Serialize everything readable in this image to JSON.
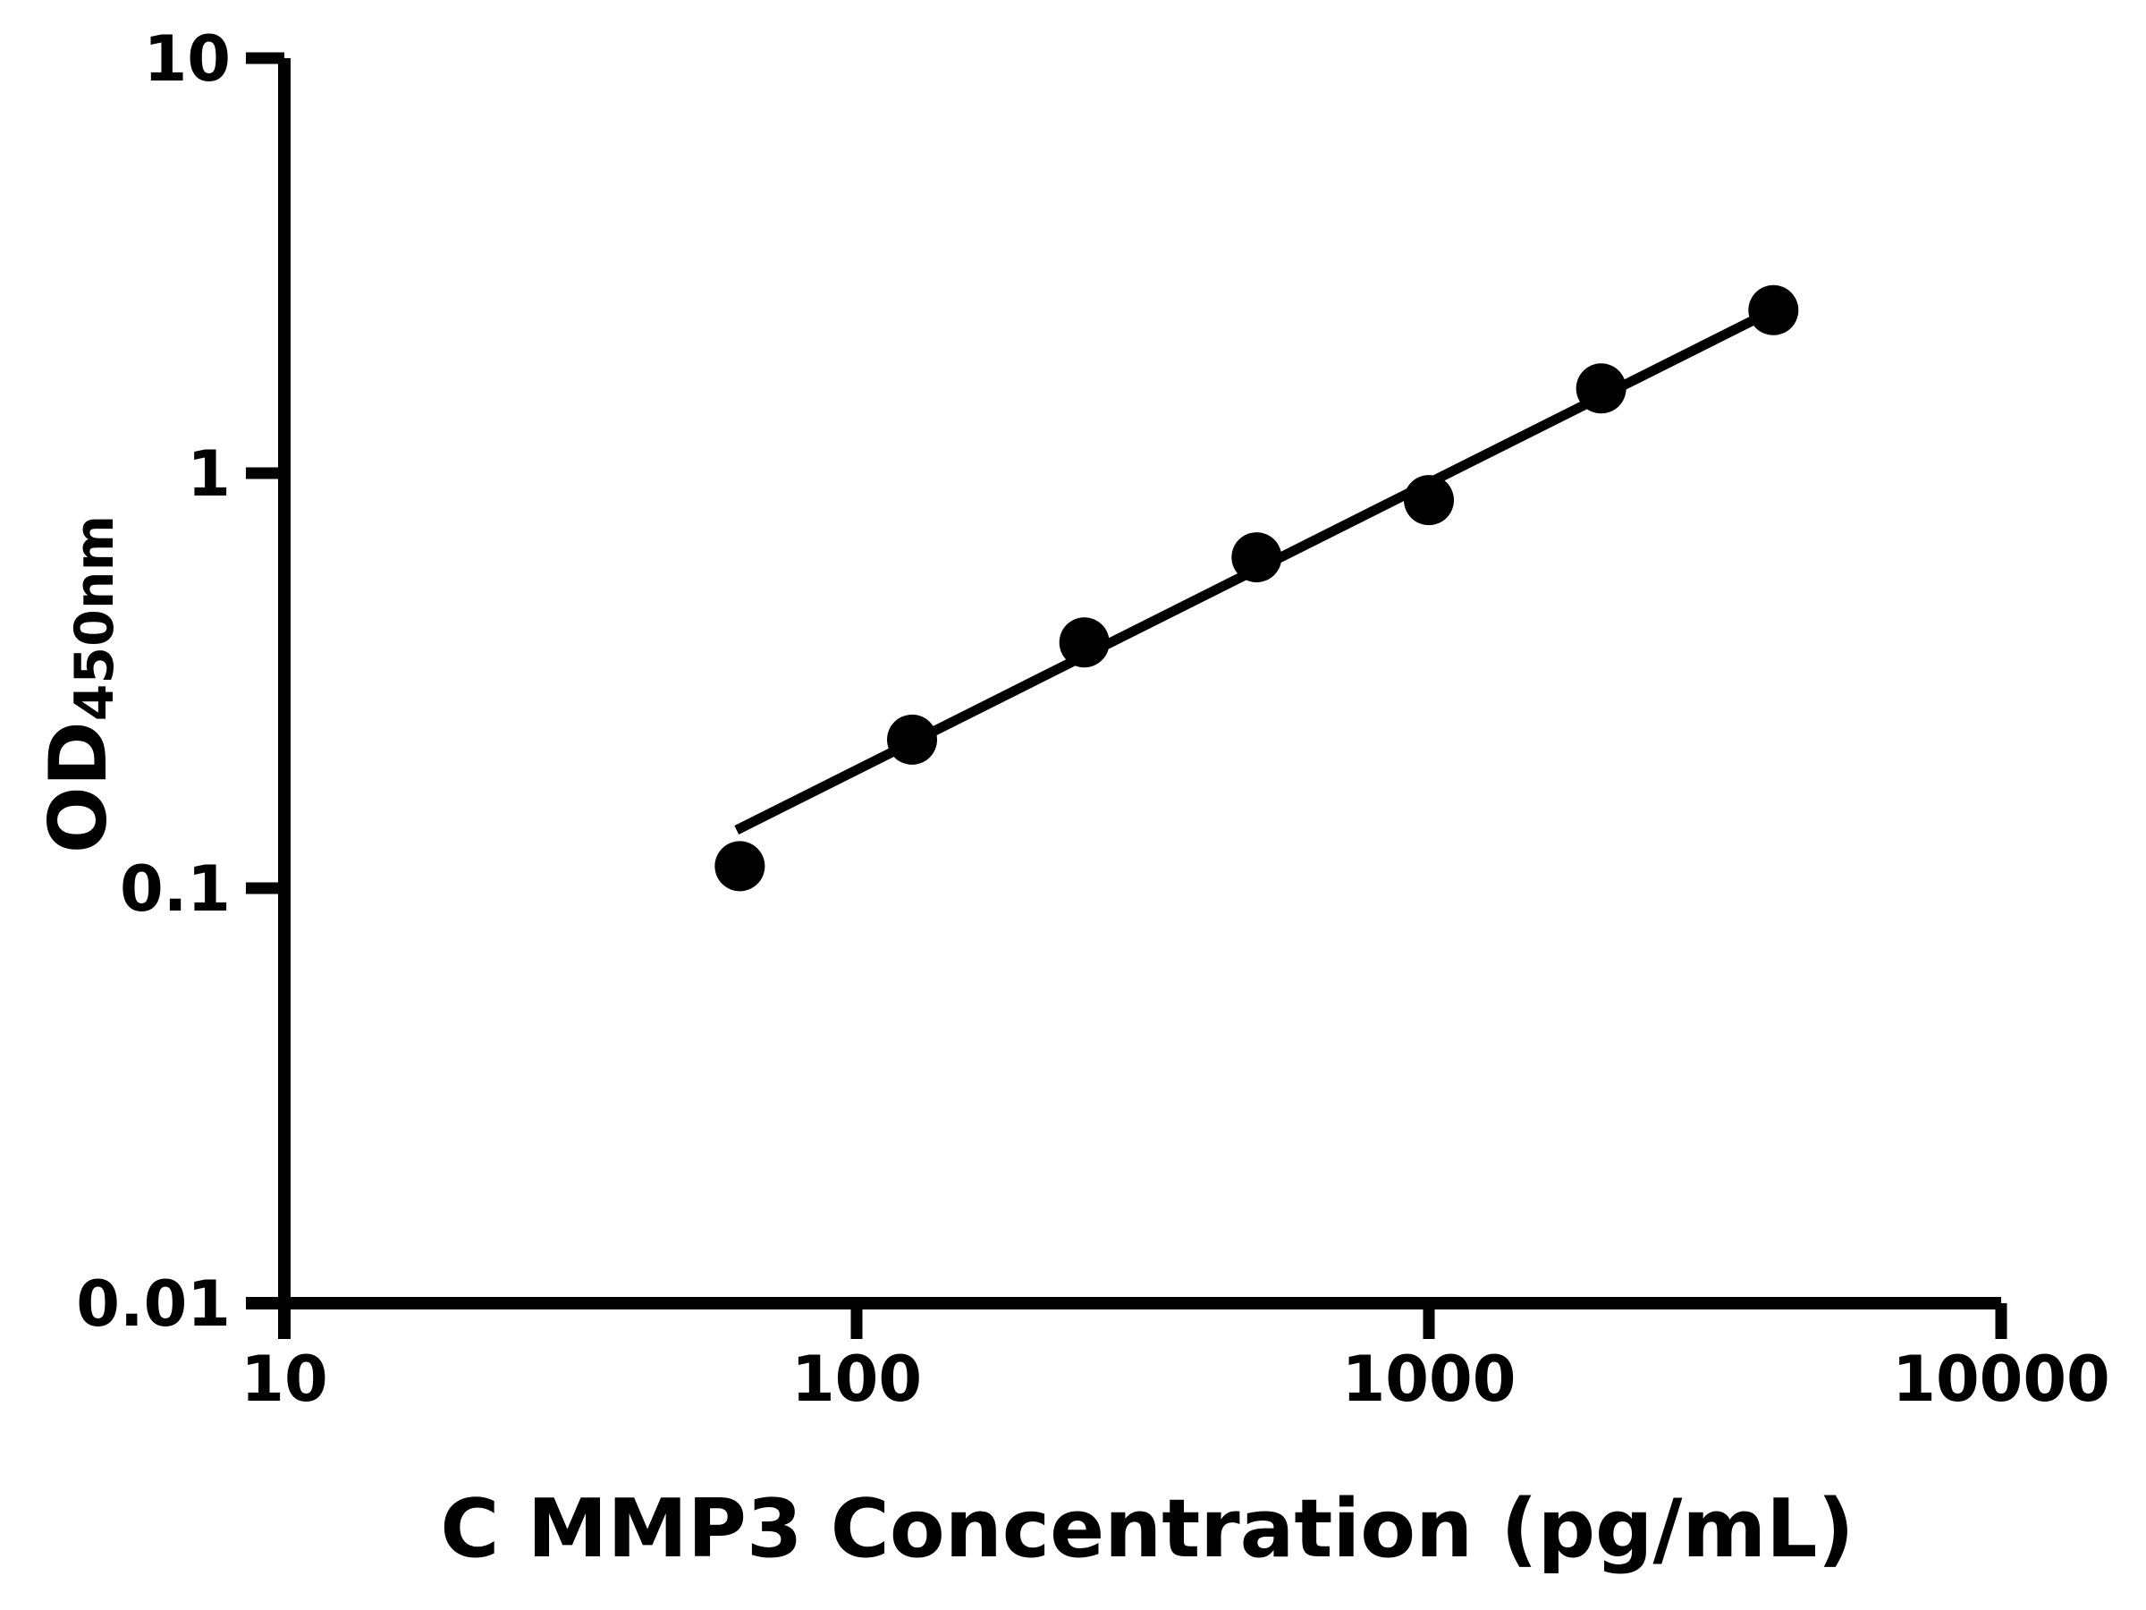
{
  "chart_data": {
    "type": "scatter",
    "title": "",
    "xlabel": "C MMP3 Concentration (pg/mL)",
    "ylabel_main": "OD",
    "ylabel_sub": "450nm",
    "x_scale": "log",
    "y_scale": "log",
    "xlim": [
      10,
      10000
    ],
    "ylim": [
      0.01,
      10
    ],
    "x_ticks": [
      {
        "value": 10,
        "label": "10"
      },
      {
        "value": 100,
        "label": "100"
      },
      {
        "value": 1000,
        "label": "1000"
      },
      {
        "value": 10000,
        "label": "10000"
      }
    ],
    "y_ticks": [
      {
        "value": 10,
        "label": "10"
      },
      {
        "value": 1,
        "label": "1"
      },
      {
        "value": 0.1,
        "label": "0.1"
      },
      {
        "value": 0.01,
        "label": "0.01"
      }
    ],
    "points": [
      {
        "x": 62.5,
        "y": 0.113
      },
      {
        "x": 125,
        "y": 0.228
      },
      {
        "x": 250,
        "y": 0.391
      },
      {
        "x": 500,
        "y": 0.627
      },
      {
        "x": 1000,
        "y": 0.861
      },
      {
        "x": 2000,
        "y": 1.6
      },
      {
        "x": 4000,
        "y": 2.47
      }
    ],
    "trendline": {
      "x1": 61.7,
      "y1": 0.138,
      "x2": 4000,
      "y2": 2.47
    },
    "legend": "none",
    "grid": "off",
    "colors": {
      "background": "#ffffff",
      "axis": "#000000",
      "marker": "#000000",
      "trendline": "#000000"
    }
  }
}
